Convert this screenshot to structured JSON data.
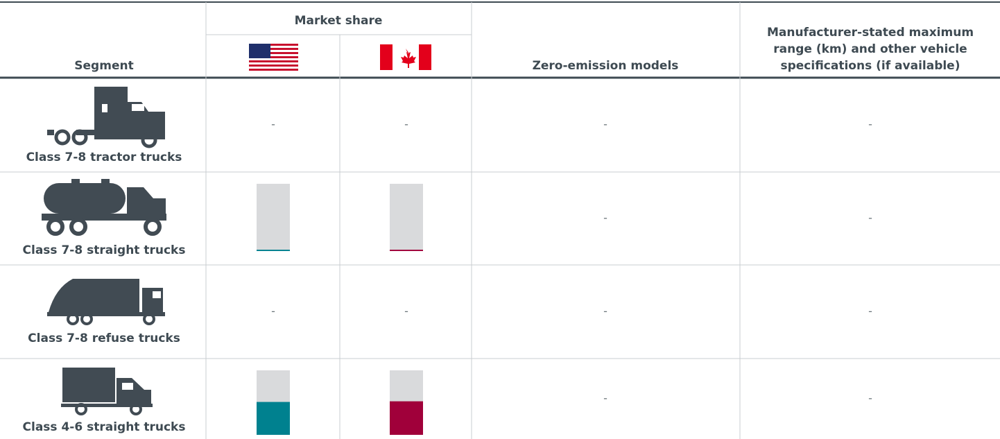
{
  "header": {
    "segment": "Segment",
    "market_share": "Market share",
    "zero_emission": "Zero-emission models",
    "specs": [
      "Manufacturer-stated maximum",
      "range (km) and other vehicle",
      "specifications (if available)"
    ]
  },
  "market_share_range": [
    0,
    100
  ],
  "us_color": "#00818f",
  "ca_color": "#a0003a",
  "rows": [
    {
      "segment": "Class 7-8 tractor trucks",
      "us": "-",
      "ca": "-",
      "models": "-",
      "specs": "-"
    },
    {
      "segment": "Class 7-8 straight trucks",
      "us": 2,
      "ca": 2,
      "models": "-",
      "specs": "-"
    },
    {
      "segment": "Class 7-8 refuse trucks",
      "us": "-",
      "ca": "-",
      "models": "-",
      "specs": "-"
    },
    {
      "segment": "Class 4-6 straight trucks",
      "us": 51,
      "ca": 52,
      "models": "-",
      "specs": "-"
    }
  ]
}
